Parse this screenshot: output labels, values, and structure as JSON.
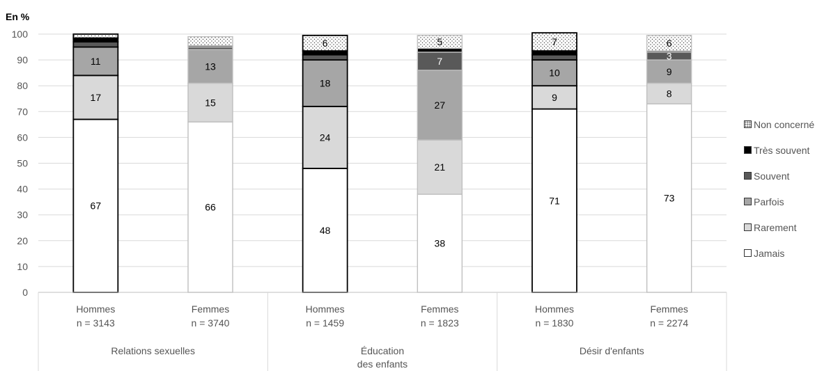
{
  "chart_data": {
    "type": "bar",
    "stacked": true,
    "ylabel": "En %",
    "ylim": [
      0,
      100
    ],
    "yticks": [
      0,
      10,
      20,
      30,
      40,
      50,
      60,
      70,
      80,
      90,
      100
    ],
    "grid": true,
    "legend_position": "right",
    "groups": [
      "Relations sexuelles",
      "Éducation des enfants",
      "Désir d'enfants"
    ],
    "group_label_lines": [
      [
        "Relations sexuelles"
      ],
      [
        "Éducation",
        "des enfants"
      ],
      [
        "Désir d'enfants"
      ]
    ],
    "categories": [
      {
        "group": 0,
        "sex": "Hommes",
        "n": "n = 3143"
      },
      {
        "group": 0,
        "sex": "Femmes",
        "n": "n = 3740"
      },
      {
        "group": 1,
        "sex": "Hommes",
        "n": "n = 1459"
      },
      {
        "group": 1,
        "sex": "Femmes",
        "n": "n = 1823"
      },
      {
        "group": 2,
        "sex": "Hommes",
        "n": "n = 1830"
      },
      {
        "group": 2,
        "sex": "Femmes",
        "n": "n = 2274"
      }
    ],
    "series": [
      {
        "name": "Jamais",
        "values": [
          67,
          66,
          48,
          38,
          71,
          73
        ],
        "labels": [
          "67",
          "66",
          "48",
          "38",
          "71",
          "73"
        ],
        "color": "#ffffff",
        "pattern": "none"
      },
      {
        "name": "Rarement",
        "values": [
          17,
          15,
          24,
          21,
          9,
          8
        ],
        "labels": [
          "17",
          "15",
          "24",
          "21",
          "9",
          "8"
        ],
        "color": "#d9d9d9",
        "pattern": "none"
      },
      {
        "name": "Parfois",
        "values": [
          11,
          13,
          18,
          27,
          10,
          9
        ],
        "labels": [
          "11",
          "13",
          "18",
          "27",
          "10",
          "9"
        ],
        "color": "#a6a6a6",
        "pattern": "none"
      },
      {
        "name": "Souvent",
        "values": [
          2,
          1,
          2,
          7,
          2,
          3
        ],
        "labels": [
          "",
          "",
          "",
          "7",
          "",
          "3"
        ],
        "color": "#595959",
        "pattern": "none"
      },
      {
        "name": "Très souvent",
        "values": [
          1.5,
          0.5,
          1.5,
          1.5,
          1.5,
          0.5
        ],
        "labels": [
          "",
          "",
          "",
          "",
          "",
          ""
        ],
        "color": "#000000",
        "pattern": "none"
      },
      {
        "name": "Non concerné",
        "values": [
          1.5,
          3.5,
          6,
          5,
          7,
          6
        ],
        "labels": [
          "",
          "",
          "6",
          "5",
          "7",
          "6"
        ],
        "color": "#ffffff",
        "pattern": "dots"
      }
    ]
  }
}
